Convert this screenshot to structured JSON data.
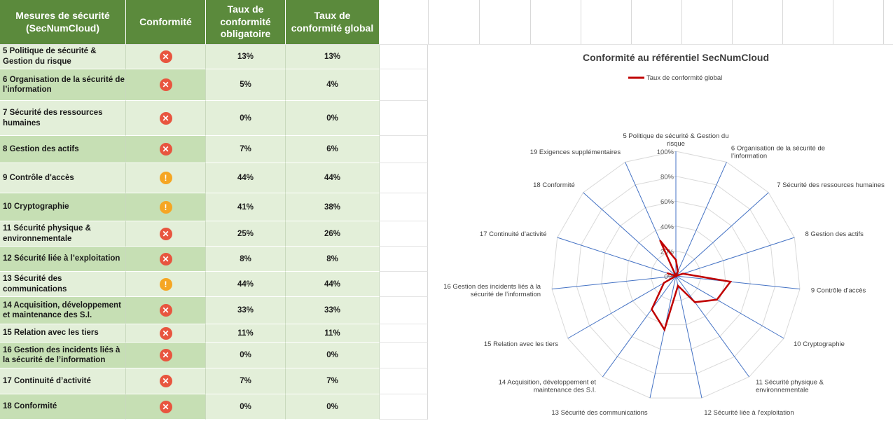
{
  "table": {
    "headers": {
      "measure": [
        "Mesures de sécurité",
        "(SecNumCloud)"
      ],
      "compliance": [
        "Conformité"
      ],
      "mandatory": [
        "Taux de",
        "conformité",
        "obligatoire"
      ],
      "global": [
        "Taux de",
        "conformité global"
      ]
    },
    "rows": [
      {
        "label": [
          "5 Politique de sécurité &",
          "Gestion du risque"
        ],
        "status": "fail",
        "mandatory": "13%",
        "global": "13%"
      },
      {
        "label": [
          "6 Organisation de la sécurité de",
          "l’information"
        ],
        "status": "fail",
        "mandatory": "5%",
        "global": "4%"
      },
      {
        "label": [
          "7 Sécurité des ressources",
          "humaines"
        ],
        "status": "fail",
        "mandatory": "0%",
        "global": "0%"
      },
      {
        "label": [
          "8 Gestion des actifs"
        ],
        "status": "fail",
        "mandatory": "7%",
        "global": "6%"
      },
      {
        "label": [
          "9 Contrôle d'accès"
        ],
        "status": "warn",
        "mandatory": "44%",
        "global": "44%"
      },
      {
        "label": [
          "10 Cryptographie"
        ],
        "status": "warn",
        "mandatory": "41%",
        "global": "38%"
      },
      {
        "label": [
          "11 Sécurité physique &",
          "environnementale"
        ],
        "status": "fail",
        "mandatory": "25%",
        "global": "26%"
      },
      {
        "label": [
          "12 Sécurité liée à l’exploitation"
        ],
        "status": "fail",
        "mandatory": "8%",
        "global": "8%"
      },
      {
        "label": [
          "13 Sécurité des",
          "communications"
        ],
        "status": "warn",
        "mandatory": "44%",
        "global": "44%"
      },
      {
        "label": [
          "14 Acquisition, développement",
          "et maintenance des S.I."
        ],
        "status": "fail",
        "mandatory": "33%",
        "global": "33%"
      },
      {
        "label": [
          "15 Relation avec les tiers"
        ],
        "status": "fail",
        "mandatory": "11%",
        "global": "11%"
      },
      {
        "label": [
          "16 Gestion des incidents liés à",
          "la sécurité de l’information"
        ],
        "status": "fail",
        "mandatory": "0%",
        "global": "0%"
      },
      {
        "label": [
          "17 Continuité d’activité"
        ],
        "status": "fail",
        "mandatory": "7%",
        "global": "7%"
      },
      {
        "label": [
          "18 Conformité"
        ],
        "status": "fail",
        "mandatory": "0%",
        "global": "0%"
      }
    ],
    "status_icons": {
      "fail": {
        "glyph": "✕",
        "icon": "fail-x-icon",
        "color": "#e8553f"
      },
      "warn": {
        "glyph": "!",
        "icon": "warning-icon",
        "color": "#f5a623"
      }
    }
  },
  "chart_data": {
    "type": "radar",
    "title": "Conformité au référentiel SecNumCloud",
    "legend": "top-center",
    "categories": [
      [
        "5 Politique de sécurité & Gestion du",
        "risque"
      ],
      [
        "6 Organisation de la sécurité de",
        "l’information"
      ],
      [
        "7 Sécurité des ressources humaines"
      ],
      [
        "8 Gestion des actifs"
      ],
      [
        "9 Contrôle d'accès"
      ],
      [
        "10 Cryptographie"
      ],
      [
        "11 Sécurité physique &",
        "environnementale"
      ],
      [
        "12 Sécurité liée à l’exploitation"
      ],
      [
        "13 Sécurité des communications"
      ],
      [
        "14 Acquisition, développement et",
        "maintenance des S.I."
      ],
      [
        "15 Relation avec les tiers"
      ],
      [
        "16 Gestion des incidents liés à la",
        "sécurité de l’information"
      ],
      [
        "17 Continuité d’activité"
      ],
      [
        "18 Conformité"
      ],
      [
        "19 Exigences supplémentaires"
      ]
    ],
    "series": [
      {
        "name": "Taux de conformité global",
        "color": "#c00000",
        "values": [
          13,
          4,
          0,
          6,
          44,
          38,
          26,
          8,
          44,
          33,
          11,
          0,
          7,
          0,
          31
        ]
      }
    ],
    "r_ticks": [
      "0%",
      "20%",
      "40%",
      "60%",
      "80%",
      "100%"
    ],
    "rlim": [
      0,
      100
    ],
    "grid": true,
    "colors": {
      "axis": "#4472c4",
      "grid": "#d9d9d9"
    }
  }
}
